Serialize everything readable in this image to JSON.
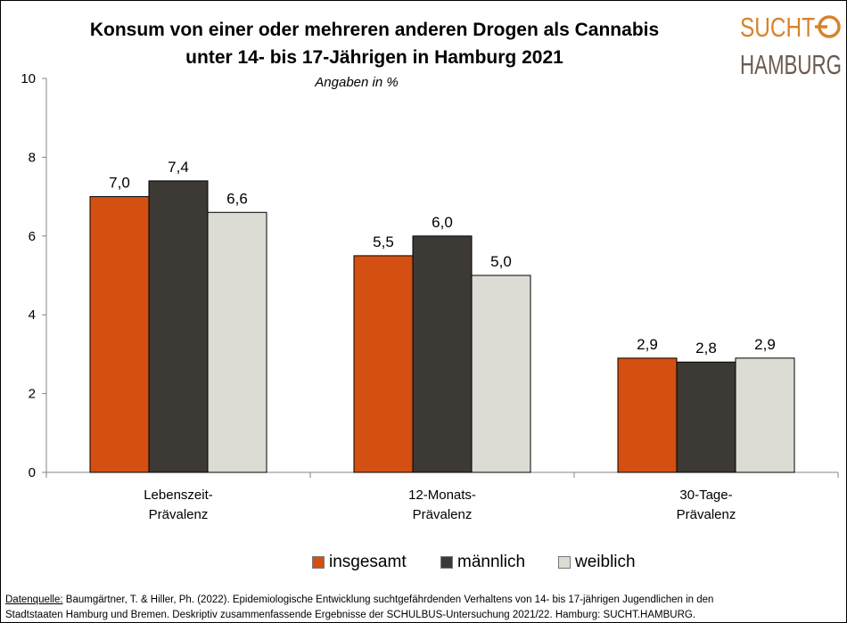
{
  "title_line1": "Konsum von einer oder mehreren anderen Drogen als Cannabis",
  "title_line2": "unter 14- bis 17-Jährigen in Hamburg 2021",
  "subtitle": "Angaben in %",
  "logo": {
    "line1": "SUCHT",
    "line2": "HAMBURG",
    "color_orange": "#d9822b",
    "color_dark": "#6b5a4e"
  },
  "chart_data": {
    "type": "bar",
    "title": "Konsum von einer oder mehreren anderen Drogen als Cannabis unter 14- bis 17-Jährigen in Hamburg 2021",
    "subtitle": "Angaben in %",
    "categories": [
      [
        "Lebenszeit-",
        "Prävalenz"
      ],
      [
        "12-Monats-",
        "Prävalenz"
      ],
      [
        "30-Tage-",
        "Prävalenz"
      ]
    ],
    "series": [
      {
        "name": "insgesamt",
        "color": "#d35012",
        "values": [
          7.0,
          5.5,
          2.9
        ],
        "labels": [
          "7,0",
          "5,5",
          "2,9"
        ]
      },
      {
        "name": "männlich",
        "color": "#3d3935",
        "values": [
          7.4,
          6.0,
          2.8
        ],
        "labels": [
          "7,4",
          "6,0",
          "2,8"
        ]
      },
      {
        "name": "weiblich",
        "color": "#dcdcd4",
        "values": [
          6.6,
          5.0,
          2.9
        ],
        "labels": [
          "6,6",
          "5,0",
          "2,9"
        ]
      }
    ],
    "ylim": [
      0,
      10
    ],
    "yticks": [
      0,
      2,
      4,
      6,
      8,
      10
    ],
    "grid": false,
    "legend_position": "bottom"
  },
  "source": {
    "label": "Datenquelle:",
    "text_line1": " Baumgärtner, T. & Hiller, Ph. (2022). Epidemiologische Entwicklung suchtgefährdenden Verhaltens von 14- bis 17-jährigen Jugendlichen in den",
    "text_line2": "Stadtstaaten Hamburg und Bremen. Deskriptiv zusammenfassende Ergebnisse der SCHULBUS-Untersuchung 2021/22. Hamburg: SUCHT.HAMBURG."
  }
}
